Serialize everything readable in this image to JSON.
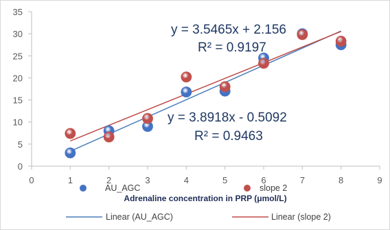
{
  "chart_data": {
    "type": "scatter",
    "title": "",
    "xlabel": "Adrenaline concentration in PRP (μmol/L)",
    "ylabel": "",
    "xlim": [
      0,
      9
    ],
    "ylim": [
      0,
      35
    ],
    "x_ticks": [
      "0",
      "1",
      "2",
      "3",
      "4",
      "5",
      "6",
      "7",
      "8",
      "9"
    ],
    "y_ticks": [
      "0",
      "5",
      "10",
      "15",
      "20",
      "25",
      "30",
      "35"
    ],
    "grid": false,
    "legend_placement": "bottom",
    "series": [
      {
        "name": "AU_AGC",
        "color": "#4472c4",
        "points": [
          [
            1,
            3.0
          ],
          [
            2,
            8.0
          ],
          [
            3,
            9.0
          ],
          [
            4,
            16.8
          ],
          [
            5,
            17.0
          ],
          [
            6,
            24.5
          ],
          [
            7,
            30.0
          ],
          [
            8,
            27.5
          ]
        ]
      },
      {
        "name": "slope 2",
        "color": "#c0504d",
        "points": [
          [
            1,
            7.4
          ],
          [
            2,
            6.6
          ],
          [
            3,
            10.8
          ],
          [
            4,
            20.2
          ],
          [
            5,
            18.0
          ],
          [
            6,
            23.3
          ],
          [
            7,
            29.8
          ],
          [
            8,
            28.3
          ]
        ]
      }
    ],
    "trendlines": [
      {
        "name": "Linear (AU_AGC)",
        "color": "#4a7ebb",
        "slope": 3.8918,
        "intercept": -0.5092,
        "x_range": [
          1,
          8
        ],
        "equation": "y = 3.8918x - 0.5092",
        "r2": "R² = 0.9463"
      },
      {
        "name": "Linear (slope 2)",
        "color": "#be4b48",
        "slope": 3.5465,
        "intercept": 2.156,
        "x_range": [
          1,
          8
        ],
        "equation": "y = 3.5465x + 2.156",
        "r2": "R² = 0.9197"
      }
    ]
  }
}
